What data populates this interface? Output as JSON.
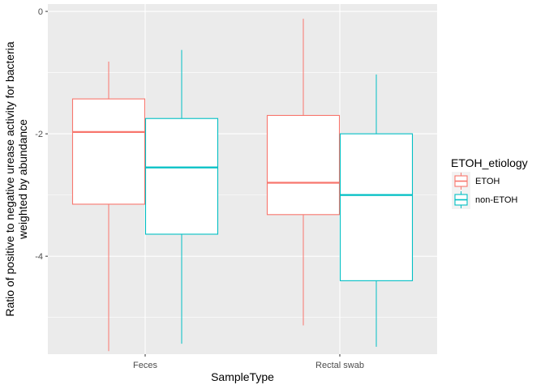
{
  "chart_data": {
    "type": "boxplot",
    "xlabel": "SampleType",
    "ylabel_lines": [
      "Ratio of positive to negative urease activity for bacteria",
      "weighted by abundance"
    ],
    "categories": [
      "Feces",
      "Rectal swab"
    ],
    "ylim": [
      -5.6,
      0.12
    ],
    "yticks": [
      0,
      -2,
      -4
    ],
    "ytick_labels": [
      "0",
      "-2",
      "-4"
    ],
    "grid": true,
    "legend": {
      "title": "ETOH_etiology",
      "position": "right",
      "entries": [
        "ETOH",
        "non-ETOH"
      ]
    },
    "series": [
      {
        "name": "ETOH",
        "color": "#F8766D",
        "boxes": [
          {
            "category": "Feces",
            "min": -5.55,
            "q1": -3.15,
            "median": -1.97,
            "q3": -1.43,
            "max": -0.82
          },
          {
            "category": "Rectal swab",
            "min": -5.13,
            "q1": -3.32,
            "median": -2.8,
            "q3": -1.7,
            "max": -0.12
          }
        ]
      },
      {
        "name": "non-ETOH",
        "color": "#00BFC4",
        "boxes": [
          {
            "category": "Feces",
            "min": -5.43,
            "q1": -3.64,
            "median": -2.55,
            "q3": -1.75,
            "max": -0.63
          },
          {
            "category": "Rectal swab",
            "min": -5.48,
            "q1": -4.4,
            "median": -3.0,
            "q3": -2.0,
            "max": -1.03
          }
        ]
      }
    ]
  }
}
